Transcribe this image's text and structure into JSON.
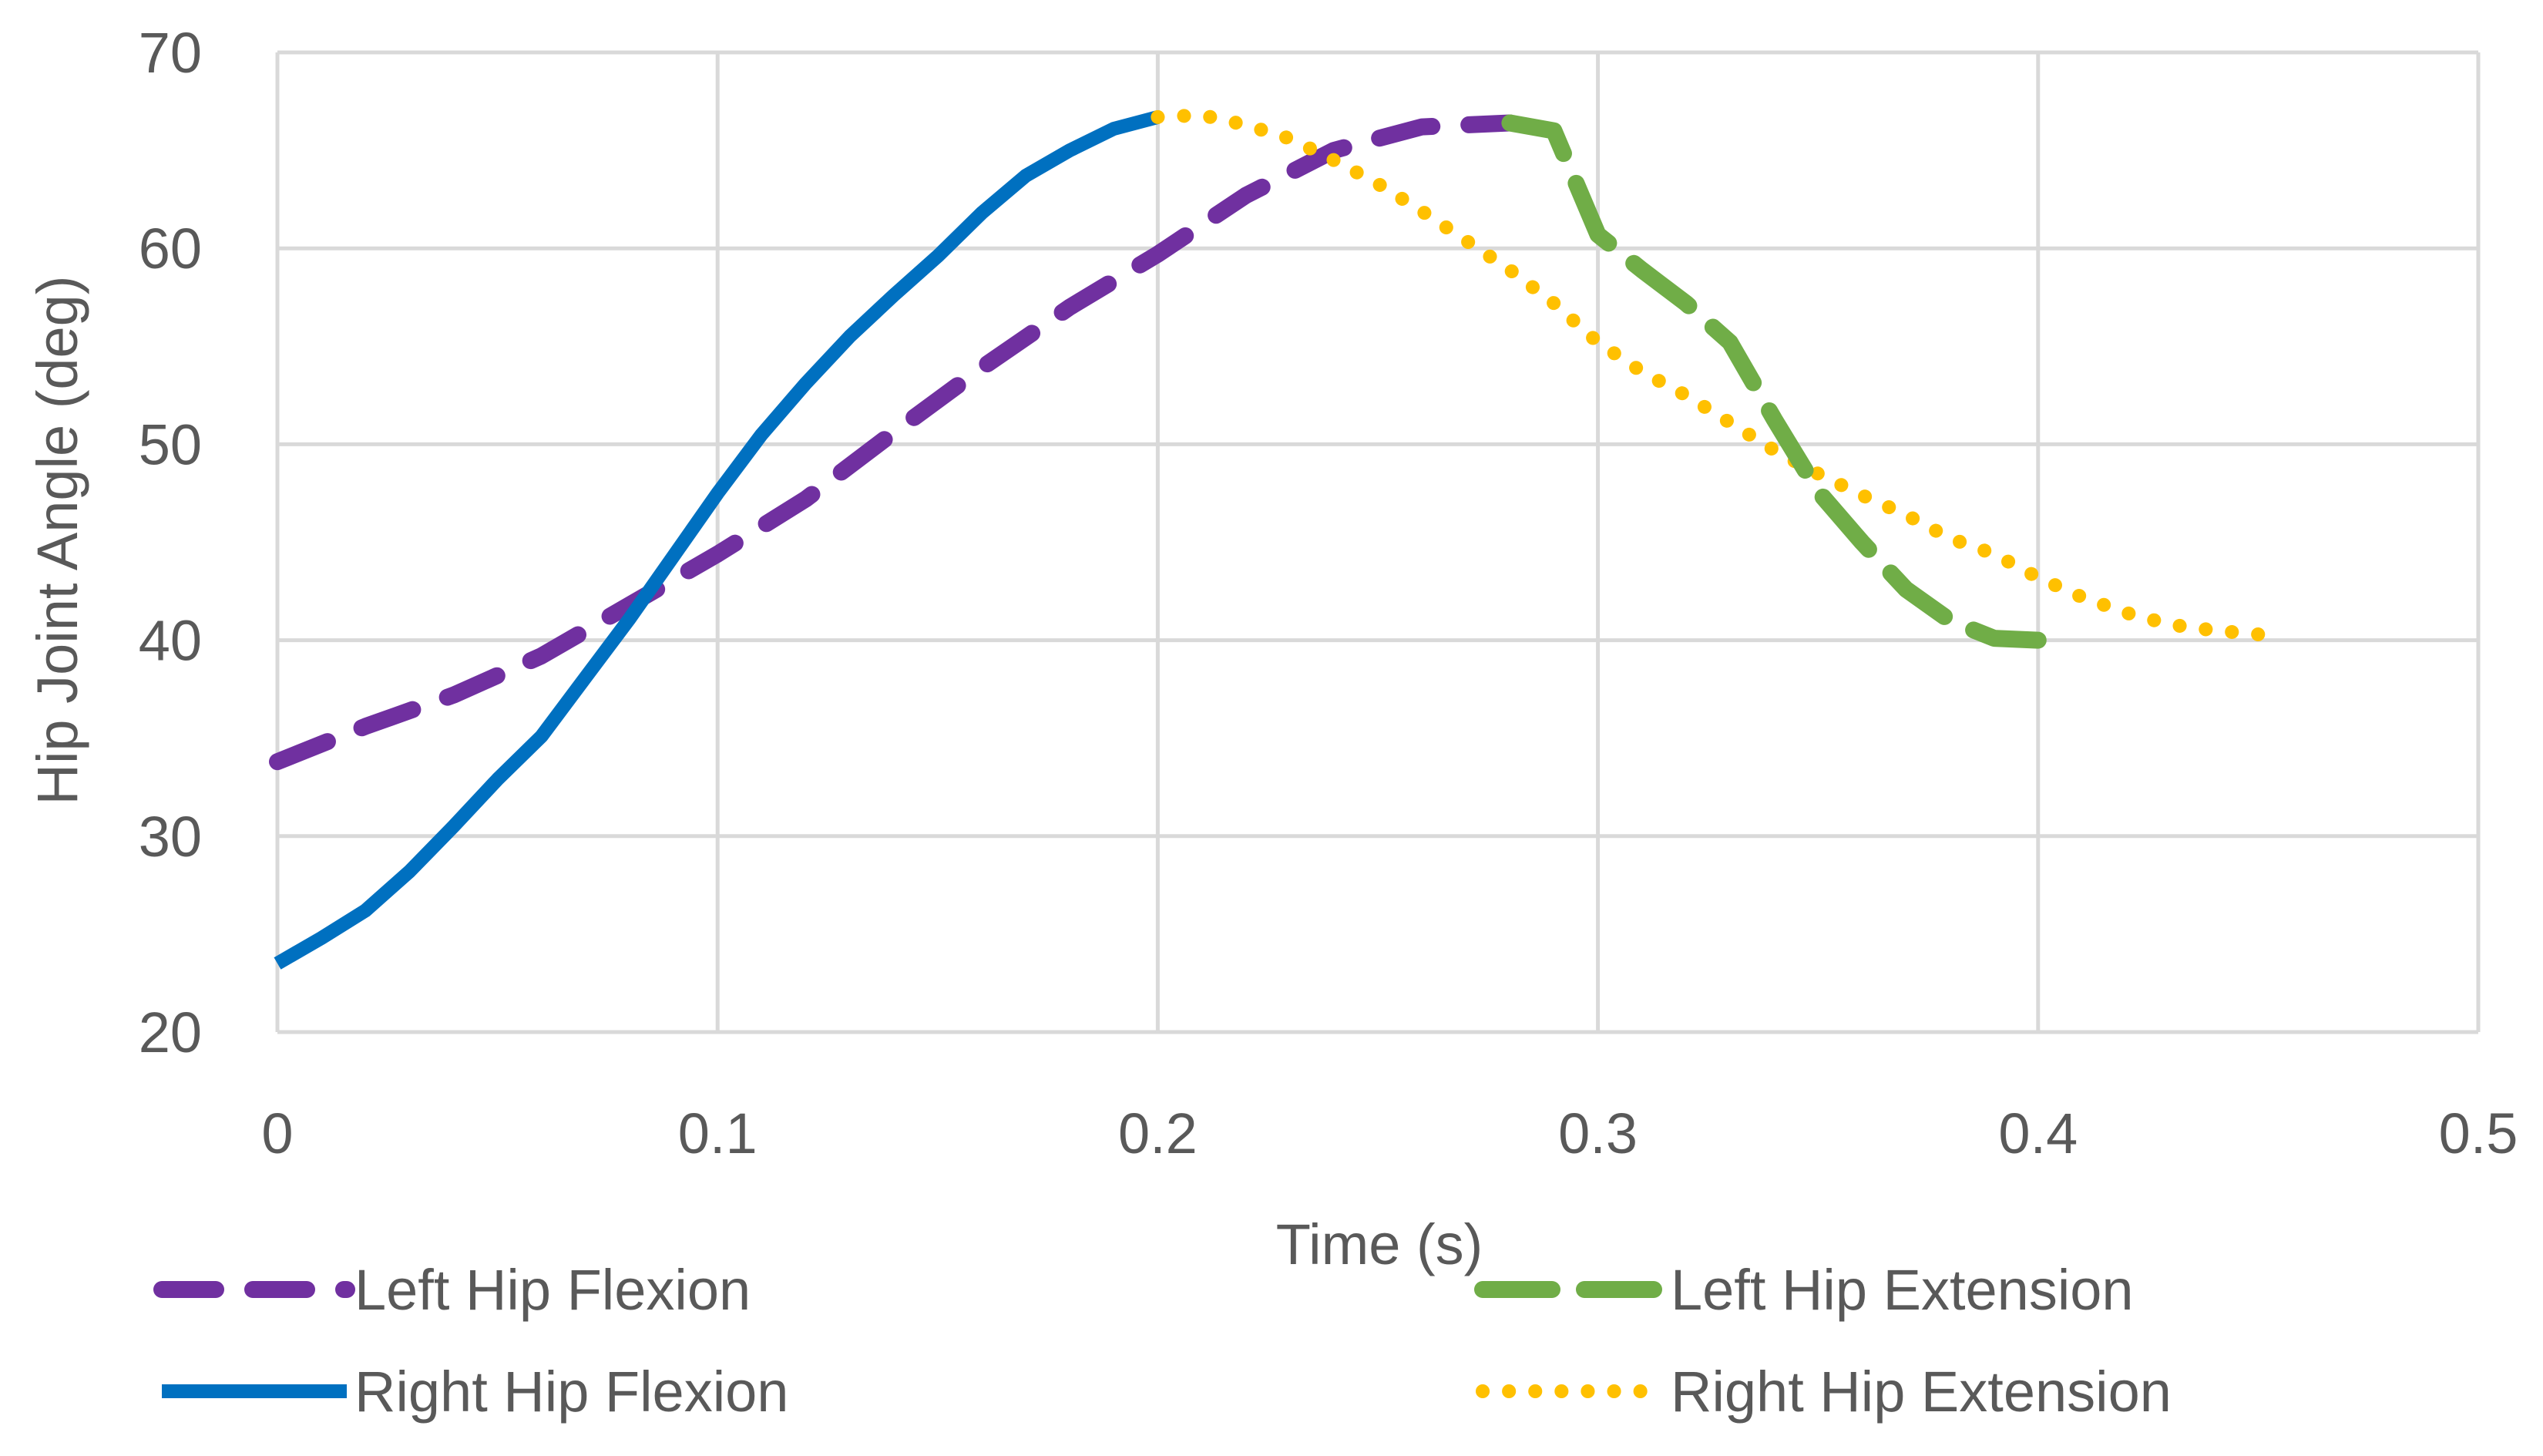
{
  "chart_data": {
    "type": "line",
    "title": "",
    "xlabel": "Time (s)",
    "ylabel": "Hip Joint Angle (deg)",
    "xlim": [
      0,
      0.5
    ],
    "ylim": [
      20,
      70
    ],
    "xticks": [
      0,
      0.1,
      0.2,
      0.3,
      0.4,
      0.5
    ],
    "xtick_labels": [
      "0",
      "0.1",
      "0.2",
      "0.3",
      "0.4",
      "0.5"
    ],
    "yticks": [
      20,
      30,
      40,
      50,
      60,
      70
    ],
    "ytick_labels": [
      "20",
      "30",
      "40",
      "50",
      "60",
      "70"
    ],
    "grid": true,
    "legend_position": "bottom",
    "series": [
      {
        "name": "Left Hip Flexion",
        "color": "#7030A0",
        "style": "dashed",
        "x": [
          0,
          0.02,
          0.04,
          0.06,
          0.08,
          0.1,
          0.12,
          0.14,
          0.16,
          0.18,
          0.2,
          0.22,
          0.24,
          0.26,
          0.28
        ],
        "y": [
          33.8,
          35.6,
          37.2,
          39.2,
          41.8,
          44.4,
          47.2,
          50.6,
          53.9,
          57.0,
          59.7,
          62.7,
          65.0,
          66.2,
          66.4
        ]
      },
      {
        "name": "Left Hip Extension",
        "color": "#70AD47",
        "style": "long-dashed",
        "x": [
          0.28,
          0.29,
          0.3,
          0.31,
          0.32,
          0.33,
          0.34,
          0.35,
          0.36,
          0.37,
          0.38,
          0.39,
          0.4
        ],
        "y": [
          66.4,
          66.0,
          60.7,
          58.9,
          57.2,
          55.2,
          51.3,
          47.6,
          45.0,
          42.6,
          41.0,
          40.1,
          40.0
        ]
      },
      {
        "name": "Right Hip Flexion",
        "color": "#0070C0",
        "style": "solid",
        "x": [
          0,
          0.01,
          0.02,
          0.03,
          0.04,
          0.05,
          0.06,
          0.07,
          0.08,
          0.09,
          0.1,
          0.11,
          0.12,
          0.13,
          0.14,
          0.15,
          0.16,
          0.17,
          0.18,
          0.19,
          0.2
        ],
        "y": [
          23.5,
          24.8,
          26.2,
          28.2,
          30.5,
          32.9,
          35.1,
          38.1,
          41.1,
          44.3,
          47.5,
          50.5,
          53.1,
          55.5,
          57.6,
          59.6,
          61.8,
          63.7,
          65.0,
          66.1,
          66.7
        ]
      },
      {
        "name": "Right Hip Extension",
        "color": "#FFC000",
        "style": "dotted",
        "x": [
          0.2,
          0.21,
          0.22,
          0.23,
          0.24,
          0.25,
          0.26,
          0.27,
          0.28,
          0.29,
          0.3,
          0.31,
          0.32,
          0.33,
          0.34,
          0.35,
          0.36,
          0.37,
          0.38,
          0.39,
          0.4,
          0.41,
          0.42,
          0.43,
          0.44,
          0.45,
          0.455
        ],
        "y": [
          66.7,
          66.8,
          66.3,
          65.6,
          64.5,
          63.3,
          61.9,
          60.4,
          58.9,
          57.2,
          55.2,
          53.7,
          52.5,
          51.1,
          49.7,
          48.5,
          47.4,
          46.4,
          45.2,
          44.4,
          43.2,
          42.2,
          41.4,
          40.8,
          40.5,
          40.3,
          40.3
        ]
      }
    ],
    "legend": [
      {
        "name": "Left Hip Flexion",
        "series_index": 0
      },
      {
        "name": "Left Hip Extension",
        "series_index": 1
      },
      {
        "name": "Right Hip Flexion",
        "series_index": 2
      },
      {
        "name": "Right Hip Extension",
        "series_index": 3
      }
    ],
    "colors": {
      "grid": "#D9D9D9",
      "text": "#595959"
    }
  }
}
